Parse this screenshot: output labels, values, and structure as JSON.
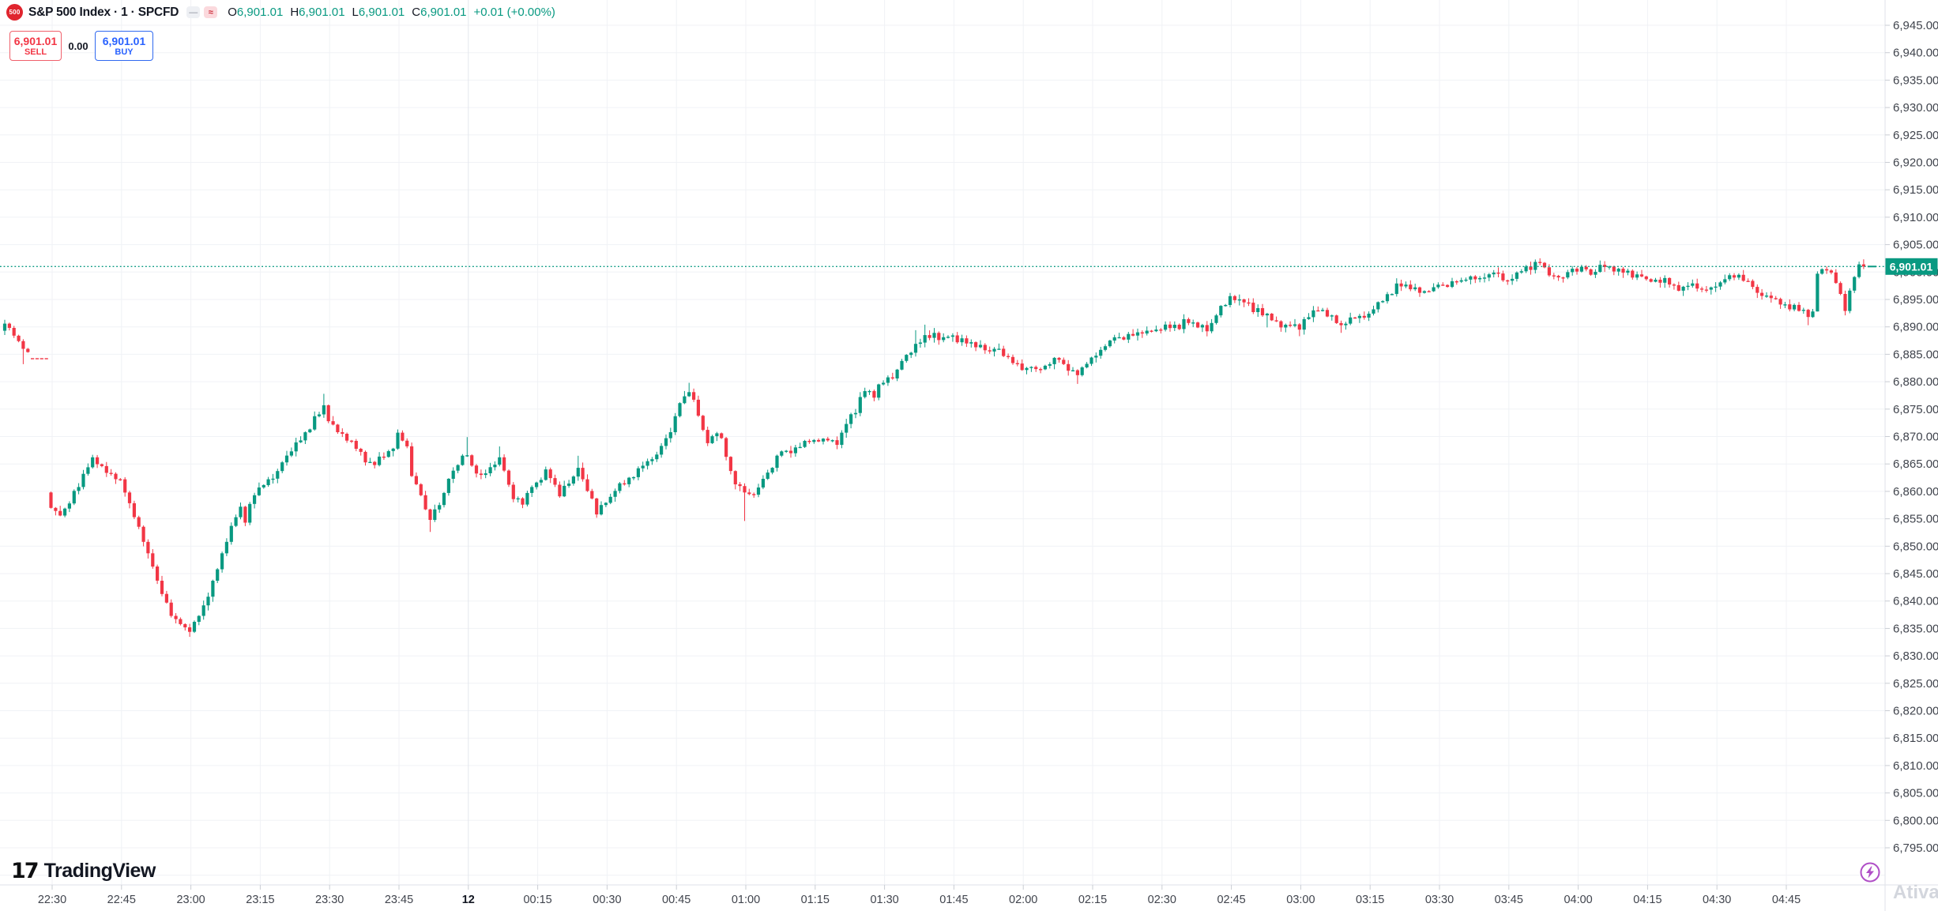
{
  "header": {
    "logo_text": "500",
    "symbol_title": "S&P 500 Index · 1 · SPCFD",
    "ohlc": {
      "o_label": "O",
      "o_value": "6,901.01",
      "h_label": "H",
      "h_value": "6,901.01",
      "l_label": "L",
      "l_value": "6,901.01",
      "c_label": "C",
      "c_value": "6,901.01",
      "change": "+0.01 (+0.00%)"
    },
    "sell_button": {
      "price": "6,901.01",
      "label": "SELL"
    },
    "spread": "0.00",
    "buy_button": {
      "price": "6,901.01",
      "label": "BUY"
    }
  },
  "footer": {
    "logo_mark": "17",
    "logo_text": "TradingView",
    "watermark_left": "A",
    "watermark_right": "tiva"
  },
  "chart_data": {
    "type": "candlestick",
    "title": "S&P 500 Index",
    "interval": "1 minute",
    "symbol": "SPCFD",
    "last_price": 6901.01,
    "last_price_label": "6,901.01",
    "change_label": "+0.01 (+0.00%)",
    "up_color": "#089981",
    "down_color": "#f23645",
    "grid": true,
    "y_axis": {
      "min": 6795,
      "max": 6945,
      "step": 5
    },
    "x_axis": {
      "labels": [
        "22:30",
        "22:45",
        "23:00",
        "23:15",
        "23:30",
        "23:45",
        "12",
        "00:15",
        "00:30",
        "00:45",
        "01:00",
        "01:15",
        "01:30",
        "01:45",
        "02:00",
        "02:15",
        "02:30",
        "02:45",
        "03:00",
        "03:15",
        "03:30",
        "03:45",
        "04:00",
        "04:15",
        "04:30",
        "04:45"
      ],
      "day_change_index": 6,
      "minutes_per_label": 15
    },
    "num_candles": 403,
    "minutes_per_candle": 1,
    "seed": 7,
    "flat_range": [
      6,
      9
    ],
    "flat_value": 6884.3,
    "open_overrides": [
      [
        0,
        6889.3
      ],
      [
        10,
        6859.8
      ]
    ],
    "wick_overrides": [
      [
        4,
        null,
        6883.2
      ],
      [
        69,
        6877.8,
        null
      ],
      [
        92,
        null,
        6852.6
      ],
      [
        100,
        6869.9,
        null
      ],
      [
        107,
        6868.2,
        null
      ],
      [
        124,
        6866.5,
        null
      ],
      [
        148,
        6879.8,
        null
      ],
      [
        160,
        null,
        6854.6
      ],
      [
        197,
        6889.4,
        null
      ],
      [
        199,
        6890.4,
        null
      ],
      [
        232,
        null,
        6879.6
      ],
      [
        252,
        6891,
        null
      ],
      [
        265,
        6896.2,
        null
      ],
      [
        273,
        null,
        6889.9
      ],
      [
        276,
        null,
        6889.1
      ],
      [
        280,
        null,
        6888.3
      ],
      [
        289,
        null,
        6888.9
      ],
      [
        332,
        6902.5,
        null
      ],
      [
        345,
        6902.1,
        null
      ],
      [
        390,
        null,
        6890.3
      ],
      [
        392,
        null,
        6893
      ],
      [
        398,
        null,
        6892.1
      ],
      [
        401,
        6901.9,
        null
      ]
    ],
    "close_waypoints": [
      [
        0,
        6890.8
      ],
      [
        1,
        6889.6
      ],
      [
        2,
        6888.6
      ],
      [
        3,
        6887.2
      ],
      [
        4,
        6886.2
      ],
      [
        5,
        6885.2
      ],
      [
        6,
        6884.3
      ],
      [
        9,
        6884.3
      ],
      [
        10,
        6857.2
      ],
      [
        12,
        6855.8
      ],
      [
        14,
        6858
      ],
      [
        16,
        6861
      ],
      [
        18,
        6864.6
      ],
      [
        19,
        6866
      ],
      [
        21,
        6864.4
      ],
      [
        23,
        6863
      ],
      [
        25,
        6862
      ],
      [
        26,
        6860
      ],
      [
        28,
        6855.5
      ],
      [
        30,
        6851
      ],
      [
        31,
        6848.5
      ],
      [
        32,
        6846.5
      ],
      [
        33,
        6843.5
      ],
      [
        34,
        6841.5
      ],
      [
        35,
        6839.5
      ],
      [
        36,
        6837.5
      ],
      [
        37,
        6836.5
      ],
      [
        38,
        6836
      ],
      [
        39,
        6835
      ],
      [
        40,
        6834.6
      ],
      [
        41,
        6836
      ],
      [
        42,
        6837.5
      ],
      [
        43,
        6839
      ],
      [
        44,
        6841
      ],
      [
        45,
        6843.5
      ],
      [
        46,
        6846
      ],
      [
        47,
        6848.5
      ],
      [
        48,
        6851
      ],
      [
        49,
        6853.5
      ],
      [
        50,
        6855.5
      ],
      [
        51,
        6857
      ],
      [
        52,
        6854.5
      ],
      [
        53,
        6857.5
      ],
      [
        54,
        6859.5
      ],
      [
        55,
        6860.5
      ],
      [
        57,
        6862
      ],
      [
        59,
        6863.5
      ],
      [
        60,
        6865.5
      ],
      [
        62,
        6867.5
      ],
      [
        64,
        6869.5
      ],
      [
        66,
        6871.5
      ],
      [
        67,
        6873.5
      ],
      [
        69,
        6875.5
      ],
      [
        70,
        6873
      ],
      [
        72,
        6871
      ],
      [
        73,
        6870.3
      ],
      [
        75,
        6869
      ],
      [
        77,
        6867
      ],
      [
        78,
        6865.5
      ],
      [
        80,
        6865
      ],
      [
        82,
        6866.5
      ],
      [
        84,
        6868
      ],
      [
        85,
        6870.5
      ],
      [
        87,
        6868
      ],
      [
        88,
        6863
      ],
      [
        90,
        6859.5
      ],
      [
        91,
        6856.5
      ],
      [
        92,
        6855
      ],
      [
        93,
        6856.5
      ],
      [
        95,
        6859.5
      ],
      [
        96,
        6862.5
      ],
      [
        98,
        6865
      ],
      [
        99,
        6866.3
      ],
      [
        100,
        6866.8
      ],
      [
        101,
        6864.5
      ],
      [
        103,
        6862.8
      ],
      [
        104,
        6863.5
      ],
      [
        105,
        6864.2
      ],
      [
        107,
        6866
      ],
      [
        108,
        6864
      ],
      [
        109,
        6861
      ],
      [
        110,
        6858.8
      ],
      [
        112,
        6857.8
      ],
      [
        113,
        6859.5
      ],
      [
        114,
        6861
      ],
      [
        116,
        6862.3
      ],
      [
        117,
        6863.8
      ],
      [
        119,
        6861
      ],
      [
        120,
        6859.3
      ],
      [
        121,
        6860.8
      ],
      [
        123,
        6862.5
      ],
      [
        124,
        6864.5
      ],
      [
        125,
        6862
      ],
      [
        127,
        6858.5
      ],
      [
        128,
        6856
      ],
      [
        129,
        6857.3
      ],
      [
        131,
        6858.8
      ],
      [
        132,
        6860.3
      ],
      [
        134,
        6861.5
      ],
      [
        136,
        6862.8
      ],
      [
        137,
        6864
      ],
      [
        139,
        6865.3
      ],
      [
        141,
        6866.5
      ],
      [
        142,
        6868.5
      ],
      [
        144,
        6871
      ],
      [
        145,
        6873.5
      ],
      [
        146,
        6876.3
      ],
      [
        148,
        6878.3
      ],
      [
        149,
        6876.5
      ],
      [
        150,
        6874
      ],
      [
        151,
        6871
      ],
      [
        152,
        6869
      ],
      [
        154,
        6870.8
      ],
      [
        155,
        6869.5
      ],
      [
        156,
        6866.5
      ],
      [
        157,
        6863.5
      ],
      [
        158,
        6861.5
      ],
      [
        160,
        6860
      ],
      [
        161,
        6859.3
      ],
      [
        162,
        6859.6
      ],
      [
        163,
        6860.5
      ],
      [
        164,
        6862.5
      ],
      [
        166,
        6864.5
      ],
      [
        167,
        6866.3
      ],
      [
        168,
        6867.5
      ],
      [
        169,
        6867.2
      ],
      [
        171,
        6867.8
      ],
      [
        172,
        6868.3
      ],
      [
        173,
        6869
      ],
      [
        176,
        6869.3
      ],
      [
        178,
        6869.5
      ],
      [
        180,
        6868.7
      ],
      [
        181,
        6870.5
      ],
      [
        182,
        6872.5
      ],
      [
        184,
        6874.5
      ],
      [
        185,
        6877
      ],
      [
        186,
        6878.5
      ],
      [
        188,
        6877.3
      ],
      [
        189,
        6879.3
      ],
      [
        190,
        6880
      ],
      [
        192,
        6880.8
      ],
      [
        193,
        6882
      ],
      [
        194,
        6884
      ],
      [
        196,
        6885.5
      ],
      [
        197,
        6886.7
      ],
      [
        199,
        6888.3
      ],
      [
        201,
        6888.7
      ],
      [
        202,
        6887.8
      ],
      [
        204,
        6888.4
      ],
      [
        206,
        6887.4
      ],
      [
        207,
        6887.7
      ],
      [
        209,
        6887
      ],
      [
        211,
        6886.5
      ],
      [
        213,
        6885.3
      ],
      [
        214,
        6886.2
      ],
      [
        215,
        6885.8
      ],
      [
        217,
        6884.3
      ],
      [
        218,
        6883.6
      ],
      [
        219,
        6883.1
      ],
      [
        221,
        6882.3
      ],
      [
        222,
        6882.9
      ],
      [
        223,
        6882.1
      ],
      [
        225,
        6882.7
      ],
      [
        226,
        6883.4
      ],
      [
        228,
        6884.2
      ],
      [
        229,
        6883
      ],
      [
        230,
        6882.2
      ],
      [
        232,
        6881.4
      ],
      [
        233,
        6882.4
      ],
      [
        235,
        6884.2
      ],
      [
        237,
        6885.6
      ],
      [
        239,
        6887.3
      ],
      [
        240,
        6888.3
      ],
      [
        241,
        6887.9
      ],
      [
        243,
        6888.5
      ],
      [
        245,
        6888.8
      ],
      [
        247,
        6889.1
      ],
      [
        249,
        6889.3
      ],
      [
        250,
        6889.7
      ],
      [
        252,
        6890
      ],
      [
        254,
        6889.8
      ],
      [
        255,
        6891.2
      ],
      [
        257,
        6890.6
      ],
      [
        258,
        6890.1
      ],
      [
        260,
        6889.4
      ],
      [
        261,
        6890.5
      ],
      [
        262,
        6892.3
      ],
      [
        264,
        6894.2
      ],
      [
        265,
        6895.4
      ],
      [
        267,
        6894.8
      ],
      [
        269,
        6894.2
      ],
      [
        270,
        6892.9
      ],
      [
        271,
        6893.2
      ],
      [
        273,
        6892.2
      ],
      [
        274,
        6891.4
      ],
      [
        276,
        6890.1
      ],
      [
        278,
        6890.4
      ],
      [
        280,
        6889.7
      ],
      [
        281,
        6891.2
      ],
      [
        283,
        6892.8
      ],
      [
        284,
        6893.2
      ],
      [
        286,
        6892.1
      ],
      [
        288,
        6890.9
      ],
      [
        289,
        6890.1
      ],
      [
        291,
        6891.5
      ],
      [
        293,
        6891.8
      ],
      [
        295,
        6892.2
      ],
      [
        296,
        6893.4
      ],
      [
        298,
        6894.9
      ],
      [
        300,
        6896.2
      ],
      [
        301,
        6897.7
      ],
      [
        303,
        6897.5
      ],
      [
        305,
        6897
      ],
      [
        307,
        6896.3
      ],
      [
        308,
        6896.7
      ],
      [
        310,
        6897.9
      ],
      [
        312,
        6897.5
      ],
      [
        313,
        6898.1
      ],
      [
        315,
        6898.3
      ],
      [
        317,
        6899
      ],
      [
        319,
        6898.7
      ],
      [
        320,
        6899.2
      ],
      [
        322,
        6900.1
      ],
      [
        324,
        6898.7
      ],
      [
        325,
        6898.2
      ],
      [
        327,
        6899.7
      ],
      [
        329,
        6900.8
      ],
      [
        330,
        6900.6
      ],
      [
        332,
        6901.9
      ],
      [
        334,
        6899.6
      ],
      [
        335,
        6899.1
      ],
      [
        337,
        6898.8
      ],
      [
        338,
        6900.2
      ],
      [
        340,
        6900.3
      ],
      [
        342,
        6900.7
      ],
      [
        343,
        6899.3
      ],
      [
        345,
        6901.1
      ],
      [
        347,
        6900.8
      ],
      [
        349,
        6900.4
      ],
      [
        350,
        6900.1
      ],
      [
        352,
        6899.2
      ],
      [
        354,
        6899.4
      ],
      [
        355,
        6898.5
      ],
      [
        357,
        6898.4
      ],
      [
        359,
        6898.7
      ],
      [
        361,
        6897.4
      ],
      [
        362,
        6896.8
      ],
      [
        364,
        6897.7
      ],
      [
        366,
        6897.2
      ],
      [
        367,
        6896.6
      ],
      [
        369,
        6897
      ],
      [
        371,
        6897.9
      ],
      [
        372,
        6898.9
      ],
      [
        374,
        6899.2
      ],
      [
        376,
        6898.6
      ],
      [
        378,
        6897.5
      ],
      [
        379,
        6896
      ],
      [
        381,
        6895.5
      ],
      [
        383,
        6894.9
      ],
      [
        384,
        6894.3
      ],
      [
        386,
        6893.4
      ],
      [
        387,
        6893.8
      ],
      [
        389,
        6892.9
      ],
      [
        390,
        6892
      ],
      [
        391,
        6892.6
      ],
      [
        392,
        6899.9
      ],
      [
        394,
        6900.5
      ],
      [
        395,
        6899.7
      ],
      [
        396,
        6898.2
      ],
      [
        397,
        6895.8
      ],
      [
        398,
        6893.1
      ],
      [
        399,
        6896.4
      ],
      [
        400,
        6899.3
      ],
      [
        401,
        6901.4
      ],
      [
        402,
        6901.01
      ]
    ]
  }
}
